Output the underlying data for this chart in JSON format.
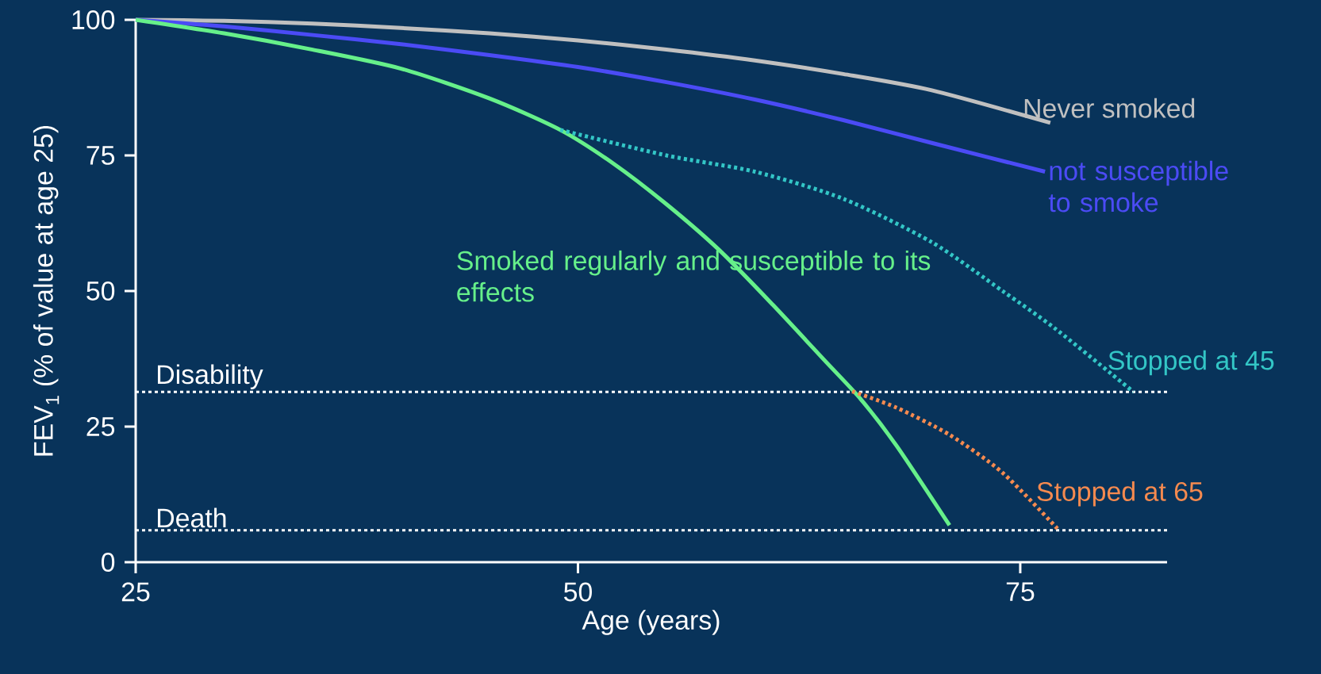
{
  "chart_data": {
    "type": "line",
    "xlabel": "Age (years)",
    "ylabel": "FEV$_{1}$ (% of value at age 25)",
    "xlim": [
      25,
      83.3
    ],
    "ylim": [
      0,
      100
    ],
    "xticks": [
      25,
      50,
      75
    ],
    "yticks": [
      0,
      25,
      50,
      75,
      100
    ],
    "series": [
      {
        "name": "Never smoked",
        "color": "#c0c0c0",
        "line_style": "solid",
        "x": [
          25,
          30,
          35,
          40,
          45,
          50,
          55,
          60,
          65,
          70,
          76.7
        ],
        "values": [
          100,
          99.8,
          99.3,
          98.5,
          97.5,
          96.2,
          94.5,
          92.5,
          90,
          87,
          81
        ]
      },
      {
        "name": "not susceptible to smoke",
        "color": "#4b4bf5",
        "line_style": "solid",
        "x": [
          25,
          30,
          35,
          40,
          45,
          50,
          55,
          60,
          65,
          70,
          76.4
        ],
        "values": [
          100,
          98.8,
          97.2,
          95.5,
          93.5,
          91.3,
          88.5,
          85.3,
          81.5,
          77.3,
          72
        ]
      },
      {
        "name": "Smoked regularly and susceptible to its effects",
        "color": "#66f08a",
        "line_style": "solid",
        "x": [
          25,
          30,
          35,
          40,
          45,
          49,
          52,
          55,
          58,
          61,
          64,
          66,
          68,
          71
        ],
        "values": [
          100,
          97.5,
          94.5,
          91,
          85.5,
          79.7,
          73.5,
          66,
          57.5,
          47.5,
          37,
          30,
          21.5,
          6.8
        ]
      },
      {
        "name": "Stopped at 45",
        "color": "#33c6c6",
        "line_style": "dotted",
        "x": [
          49,
          55,
          60,
          65,
          70,
          74,
          77,
          81.4
        ],
        "values": [
          79.7,
          75,
          72,
          67,
          59,
          50,
          43,
          31.4
        ]
      },
      {
        "name": "Stopped at 65",
        "color": "#f58a4f",
        "line_style": "dotted",
        "x": [
          65.5,
          68,
          71,
          74,
          77.1
        ],
        "values": [
          31.5,
          28.5,
          23.5,
          16.5,
          6.2
        ]
      }
    ],
    "ref_lines": [
      {
        "axis": "y",
        "value": 31.4,
        "label": "Disability",
        "color": "#ffffff",
        "line_style": "dotted"
      },
      {
        "axis": "y",
        "value": 5.9,
        "label": "Death",
        "color": "#ffffff",
        "line_style": "dotted"
      }
    ]
  }
}
